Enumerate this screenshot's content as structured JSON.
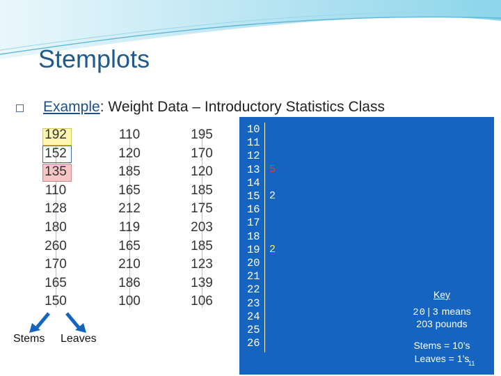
{
  "title": "Stemplots",
  "example": {
    "prefix": "Example",
    "rest": ": Weight Data – Introductory Statistics Class"
  },
  "data_columns": [
    [
      "192",
      "152",
      "135",
      "110",
      "128",
      "180",
      "260",
      "170",
      "165",
      "150"
    ],
    [
      "110",
      "120",
      "185",
      "165",
      "212",
      "119",
      "165",
      "210",
      "186",
      "100"
    ],
    [
      "195",
      "170",
      "120",
      "185",
      "175",
      "203",
      "185",
      "123",
      "139",
      "106"
    ]
  ],
  "labels": {
    "stems": "Stems",
    "leaves": "Leaves"
  },
  "stemplot": {
    "stems": [
      "10",
      "11",
      "12",
      "13",
      "14",
      "15",
      "16",
      "17",
      "18",
      "19",
      "20",
      "21",
      "22",
      "23",
      "24",
      "25",
      "26"
    ],
    "leaves": [
      {
        "stem_index": 3,
        "value": "5",
        "color": "#e53935"
      },
      {
        "stem_index": 5,
        "value": "2",
        "color": "#ffffff"
      },
      {
        "stem_index": 9,
        "value": "2",
        "color": "#ffeb3b"
      }
    ]
  },
  "key": {
    "title": "Key",
    "example_num": "20|3",
    "example_text": "means",
    "example_text2": "203 pounds",
    "scale1": "Stems = 10’s",
    "scale2": "Leaves = 1’s"
  },
  "page_number": "11",
  "colors": {
    "title": "#1f5a8c",
    "panel": "#1565c0",
    "highlight_yellow": "#fff6b0",
    "highlight_pink": "#f6c6c6"
  }
}
